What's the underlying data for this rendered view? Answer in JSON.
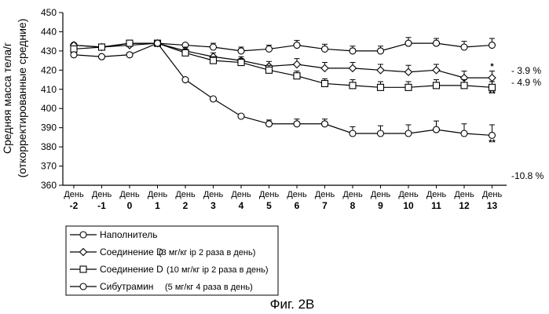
{
  "chart_data": {
    "type": "line",
    "ylabel_line1": "Средняя масса тела/г",
    "ylabel_line2": "(откорректированные средние)",
    "ylim": [
      360,
      450
    ],
    "yticks": [
      360,
      370,
      380,
      390,
      400,
      410,
      420,
      430,
      440,
      450
    ],
    "x_word": "День",
    "categories": [
      "-2",
      "-1",
      "0",
      "1",
      "2",
      "3",
      "4",
      "5",
      "6",
      "7",
      "8",
      "9",
      "10",
      "11",
      "12",
      "13"
    ],
    "grid": false,
    "series": [
      {
        "name": "Наполнитель",
        "note": "",
        "marker": "circle",
        "values": [
          433,
          432,
          434,
          434,
          433,
          432,
          430,
          431,
          433,
          431,
          430,
          430,
          434,
          434,
          432,
          433
        ],
        "errors": [
          1.5,
          1.5,
          1.5,
          1.5,
          1.5,
          2,
          2,
          2,
          2.5,
          2.5,
          2.5,
          2.5,
          3,
          2.5,
          3,
          3.5
        ],
        "end_label": "",
        "significance": ""
      },
      {
        "name": "Соединение D",
        "note": "(3 мг/кг ip 2 раза в день)",
        "marker": "diamond",
        "values": [
          433,
          432,
          433,
          434,
          430,
          427,
          425,
          422,
          423,
          421,
          421,
          420,
          419,
          420,
          416,
          416
        ],
        "errors": [
          1.5,
          1.5,
          1.5,
          1.5,
          2,
          2,
          2,
          2.5,
          3,
          3,
          3,
          3,
          3.5,
          3,
          3.5,
          3.5
        ],
        "end_label": "- 3.9 %",
        "significance": "*"
      },
      {
        "name": "Соединение D",
        "note": "(10 мг/кг ip 2 раза в день)",
        "marker": "square",
        "values": [
          431,
          432,
          434,
          434,
          429,
          425,
          424,
          420,
          417,
          413,
          412,
          411,
          411,
          412,
          412,
          411
        ],
        "errors": [
          1.5,
          1.5,
          1.5,
          1.5,
          2,
          2,
          2,
          2.5,
          2.5,
          2.5,
          3,
          3,
          3,
          3,
          3,
          3
        ],
        "end_label": "- 4.9 %",
        "significance": "**"
      },
      {
        "name": "Сибутрамин",
        "note": "(5 мг/кг 4 раза в день)",
        "marker": "circle",
        "values": [
          428,
          427,
          428,
          434,
          415,
          405,
          396,
          392,
          392,
          392,
          387,
          387,
          387,
          389,
          387,
          386
        ],
        "errors": [
          1.5,
          1.5,
          1.5,
          1.5,
          1.5,
          1.5,
          1.5,
          2,
          2.5,
          2.5,
          3.5,
          4,
          4.5,
          4.5,
          5,
          5.5
        ],
        "end_label": "-10.8 %",
        "significance": "**"
      }
    ]
  },
  "figure_caption": "Фиг. 2B"
}
